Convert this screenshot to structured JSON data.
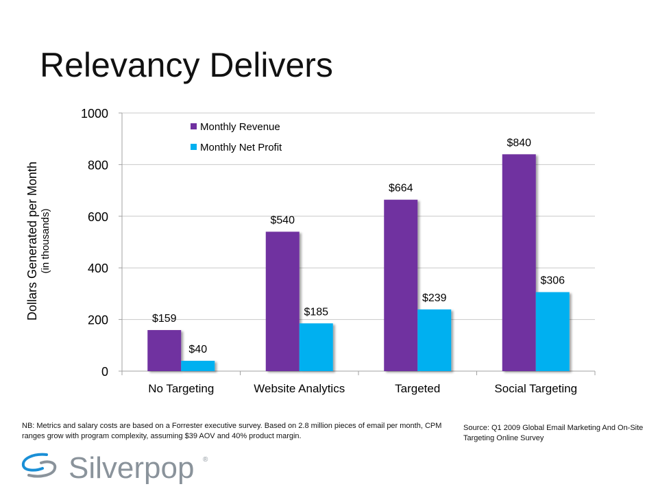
{
  "slide": {
    "title": "Relevancy Delivers",
    "note": "NB: Metrics and salary costs are based on a Forrester executive survey. Based on 2.8 million pieces of email per month, CPM ranges grow with program complexity, assuming $39 AOV and 40% product margin.",
    "source": "Source: Q1 2009 Global Email Marketing And On-Site Targeting Online Survey",
    "logo_text": "Silverpop"
  },
  "chart_data": {
    "type": "bar",
    "title": "",
    "ylabel": "Dollars Generated per Month",
    "ylabel_sub": "(in thousands)",
    "xlabel": "",
    "ylim": [
      0,
      1000
    ],
    "yticks": [
      "0",
      "200",
      "400",
      "600",
      "800",
      "1000"
    ],
    "grid": true,
    "legend": "top-left",
    "categories": [
      "No Targeting",
      "Website Analytics",
      "Targeted",
      "Social Targeting"
    ],
    "series": [
      {
        "name": "Monthly Revenue",
        "color": "#7030A0",
        "values": [
          159,
          540,
          664,
          840
        ],
        "labels": [
          "$159",
          "$540",
          "$664",
          "$840"
        ]
      },
      {
        "name": "Monthly Net Profit",
        "color": "#00B0F0",
        "values": [
          40,
          185,
          239,
          306
        ],
        "labels": [
          "$40",
          "$185",
          "$239",
          "$306"
        ]
      }
    ]
  }
}
